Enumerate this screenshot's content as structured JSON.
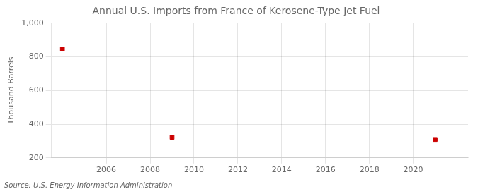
{
  "chart_data": {
    "type": "scatter",
    "title": "Annual U.S. Imports from France of Kerosene-Type Jet Fuel",
    "y_label": "Thousand Barrels",
    "annotations": [
      "Source: U.S. Energy Information Administration"
    ],
    "x": [
      2004,
      2009,
      2021
    ],
    "values": [
      847,
      322,
      309
    ],
    "color": "#cc0000",
    "marker": "square",
    "xlim": [
      2003.5,
      2022.5
    ],
    "xticks": [
      2006,
      2008,
      2010,
      2012,
      2014,
      2016,
      2018,
      2020
    ],
    "ylim": [
      200,
      1000
    ],
    "yticks": [
      200,
      400,
      600,
      800,
      {
        "value": 1000,
        "label": "1,000"
      }
    ],
    "grid": true
  }
}
